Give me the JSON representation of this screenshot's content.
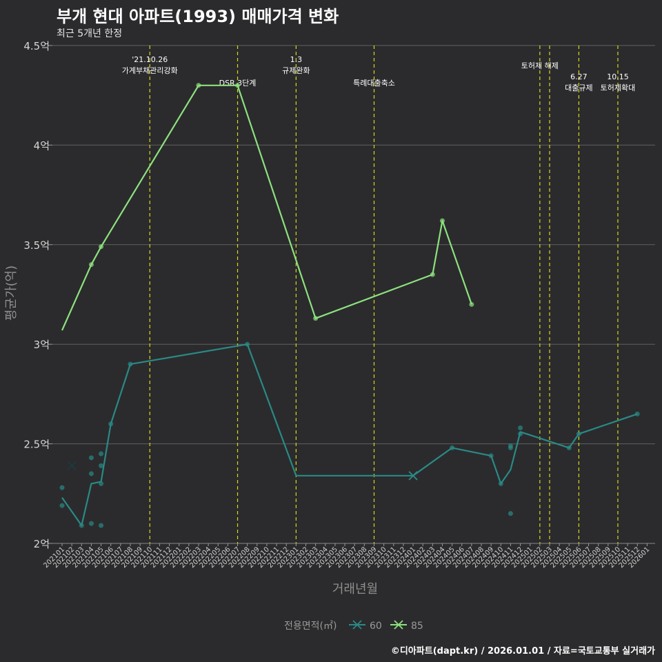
{
  "header": {
    "title": "부개 현대 아파트(1993) 매매가격 변화",
    "subtitle": "최근 5개년 한정"
  },
  "footer": {
    "source": "©디아파트(dapt.kr) / 2026.01.01 / 자료=국토교통부 실거래가"
  },
  "colors": {
    "series60": "#2a8a86",
    "series85": "#8de27e",
    "event_line": "#d8d81a",
    "grid": "#606060",
    "background": "#2b2b2d"
  },
  "chart_data": {
    "type": "line",
    "title": "부개 현대 아파트(1993) 매매가격 변화",
    "subtitle": "최근 5개년 한정",
    "xlabel": "거래년월",
    "ylabel": "평균가(억)",
    "ylim": [
      2.0,
      4.5
    ],
    "y_ticks": [
      {
        "value": 2.0,
        "label": "2억"
      },
      {
        "value": 2.5,
        "label": "2.5억"
      },
      {
        "value": 3.0,
        "label": "3억"
      },
      {
        "value": 3.5,
        "label": "3.5억"
      },
      {
        "value": 4.0,
        "label": "4억"
      },
      {
        "value": 4.5,
        "label": "4.5억"
      }
    ],
    "categories": [
      "202101",
      "202102",
      "202103",
      "202104",
      "202105",
      "202106",
      "202107",
      "202108",
      "202109",
      "202110",
      "202111",
      "202112",
      "202201",
      "202202",
      "202203",
      "202204",
      "202205",
      "202206",
      "202207",
      "202208",
      "202209",
      "202210",
      "202211",
      "202212",
      "202301",
      "202302",
      "202303",
      "202304",
      "202305",
      "202306",
      "202307",
      "202308",
      "202309",
      "202310",
      "202311",
      "202312",
      "202401",
      "202402",
      "202403",
      "202404",
      "202405",
      "202406",
      "202407",
      "202408",
      "202409",
      "202410",
      "202411",
      "202412",
      "202501",
      "202502",
      "202503",
      "202504",
      "202505",
      "202506",
      "202507",
      "202508",
      "202509",
      "202510",
      "202511",
      "202512",
      "202601"
    ],
    "series": [
      {
        "name": "60",
        "line": [
          {
            "x": "202101",
            "y": 2.23
          },
          {
            "x": "202103",
            "y": 2.09
          },
          {
            "x": "202104",
            "y": 2.3
          },
          {
            "x": "202105",
            "y": 2.31
          },
          {
            "x": "202106",
            "y": 2.6
          },
          {
            "x": "202108",
            "y": 2.9
          },
          {
            "x": "202208",
            "y": 3.0
          },
          {
            "x": "202301",
            "y": 2.34
          },
          {
            "x": "202401",
            "y": 2.34
          },
          {
            "x": "202405",
            "y": 2.48
          },
          {
            "x": "202409",
            "y": 2.44
          },
          {
            "x": "202410",
            "y": 2.3
          },
          {
            "x": "202411",
            "y": 2.37
          },
          {
            "x": "202412",
            "y": 2.56
          },
          {
            "x": "202505",
            "y": 2.48
          },
          {
            "x": "202506",
            "y": 2.55
          },
          {
            "x": "202512",
            "y": 2.65
          }
        ],
        "points": [
          {
            "x": "202101",
            "y": 2.28
          },
          {
            "x": "202101",
            "y": 2.19
          },
          {
            "x": "202103",
            "y": 2.09
          },
          {
            "x": "202104",
            "y": 2.43
          },
          {
            "x": "202104",
            "y": 2.35
          },
          {
            "x": "202104",
            "y": 2.1
          },
          {
            "x": "202105",
            "y": 2.45
          },
          {
            "x": "202105",
            "y": 2.39
          },
          {
            "x": "202105",
            "y": 2.3
          },
          {
            "x": "202105",
            "y": 2.09
          },
          {
            "x": "202106",
            "y": 2.6
          },
          {
            "x": "202108",
            "y": 2.9
          },
          {
            "x": "202208",
            "y": 3.0
          },
          {
            "x": "202405",
            "y": 2.48
          },
          {
            "x": "202409",
            "y": 2.44
          },
          {
            "x": "202410",
            "y": 2.3
          },
          {
            "x": "202411",
            "y": 2.49
          },
          {
            "x": "202411",
            "y": 2.48
          },
          {
            "x": "202411",
            "y": 2.15
          },
          {
            "x": "202412",
            "y": 2.58
          },
          {
            "x": "202412",
            "y": 2.55
          },
          {
            "x": "202505",
            "y": 2.48
          },
          {
            "x": "202506",
            "y": 2.55
          },
          {
            "x": "202512",
            "y": 2.65
          }
        ],
        "crosses": [
          {
            "x": "202102",
            "y": 2.39
          },
          {
            "x": "202401",
            "y": 2.34
          }
        ]
      },
      {
        "name": "85",
        "line": [
          {
            "x": "202101",
            "y": 3.07
          },
          {
            "x": "202104",
            "y": 3.4
          },
          {
            "x": "202105",
            "y": 3.49
          },
          {
            "x": "202203",
            "y": 4.3
          },
          {
            "x": "202207",
            "y": 4.3
          },
          {
            "x": "202303",
            "y": 3.13
          },
          {
            "x": "202403",
            "y": 3.35
          },
          {
            "x": "202404",
            "y": 3.62
          },
          {
            "x": "202407",
            "y": 3.2
          }
        ],
        "points": [
          {
            "x": "202104",
            "y": 3.4
          },
          {
            "x": "202105",
            "y": 3.49
          },
          {
            "x": "202203",
            "y": 4.3
          },
          {
            "x": "202207",
            "y": 4.3
          },
          {
            "x": "202303",
            "y": 3.13
          },
          {
            "x": "202403",
            "y": 3.35
          },
          {
            "x": "202404",
            "y": 3.62
          },
          {
            "x": "202407",
            "y": 3.2
          }
        ],
        "crosses": []
      }
    ],
    "events": [
      {
        "x": "202110",
        "lines": [
          "'21.10.26",
          "가계부채관리강화"
        ],
        "level": 0
      },
      {
        "x": "202207",
        "lines": [
          "DSR 3단계"
        ],
        "level": 1
      },
      {
        "x": "202301",
        "lines": [
          "1.3",
          "규제완화"
        ],
        "level": 0
      },
      {
        "x": "202309",
        "lines": [
          "특례대출축소"
        ],
        "level": 1
      },
      {
        "x": "202502",
        "lines": [
          "토허제 해제"
        ],
        "level": 2
      },
      {
        "x": "202503",
        "lines": [],
        "level": 2
      },
      {
        "x": "202506",
        "lines": [
          "6.27",
          "대출규제"
        ],
        "level": 3
      },
      {
        "x": "202510",
        "lines": [
          "10.15",
          "토허제확대"
        ],
        "level": 3
      }
    ],
    "legend": {
      "title": "전용면적(㎡)",
      "entries": [
        "60",
        "85"
      ],
      "position": "bottom"
    }
  }
}
